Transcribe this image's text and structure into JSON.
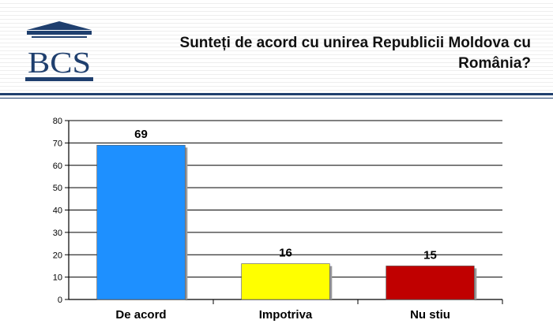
{
  "header": {
    "logo_text": "BCS",
    "question": "Sunteți de acord cu unirea Republicii Moldova cu România?"
  },
  "colors": {
    "navy": "#1f3f6e",
    "bar_blue": "#1e90ff",
    "bar_yellow": "#ffff00",
    "bar_red": "#c00000"
  },
  "chart_data": {
    "type": "bar",
    "title": "Sunteți de acord cu unirea Republicii Moldova cu România?",
    "categories": [
      "De acord",
      "Impotriva",
      "Nu stiu"
    ],
    "values": [
      69,
      16,
      15
    ],
    "bar_colors": [
      "#1e90ff",
      "#ffff00",
      "#c00000"
    ],
    "ylim": [
      0,
      80
    ],
    "yticks": [
      0,
      10,
      20,
      30,
      40,
      50,
      60,
      70,
      80
    ],
    "grid": true,
    "legend": "none",
    "data_labels": true
  }
}
